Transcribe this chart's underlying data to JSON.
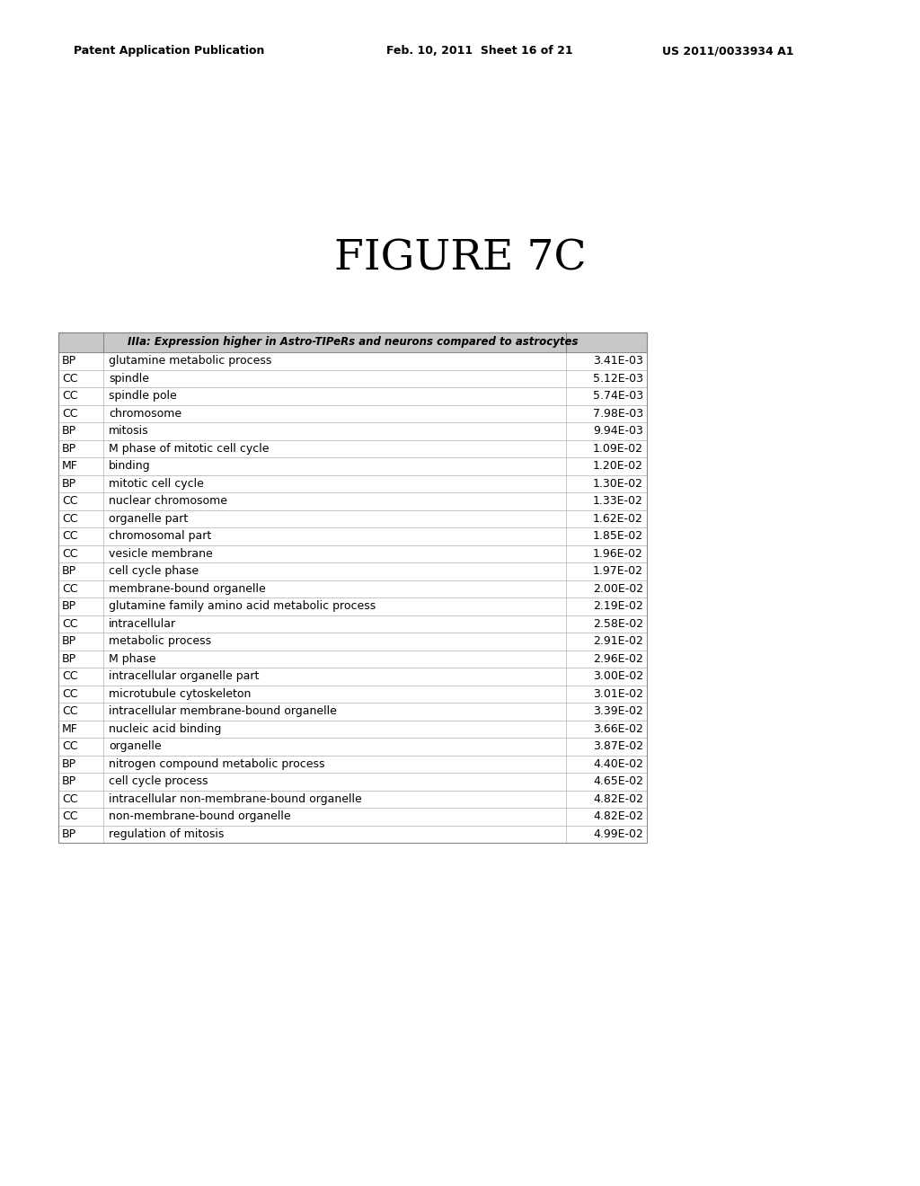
{
  "header_text": "IIIa: Expression higher in Astro-TIPeRs and neurons compared to astrocytes",
  "header_bg": "#c8c8c8",
  "figure_title": "FIGURE 7C",
  "patent_left": "Patent Application Publication",
  "patent_mid": "Feb. 10, 2011  Sheet 16 of 21",
  "patent_right": "US 2011/0033934 A1",
  "rows": [
    [
      "BP",
      "glutamine metabolic process",
      "3.41E-03"
    ],
    [
      "CC",
      "spindle",
      "5.12E-03"
    ],
    [
      "CC",
      "spindle pole",
      "5.74E-03"
    ],
    [
      "CC",
      "chromosome",
      "7.98E-03"
    ],
    [
      "BP",
      "mitosis",
      "9.94E-03"
    ],
    [
      "BP",
      "M phase of mitotic cell cycle",
      "1.09E-02"
    ],
    [
      "MF",
      "binding",
      "1.20E-02"
    ],
    [
      "BP",
      "mitotic cell cycle",
      "1.30E-02"
    ],
    [
      "CC",
      "nuclear chromosome",
      "1.33E-02"
    ],
    [
      "CC",
      "organelle part",
      "1.62E-02"
    ],
    [
      "CC",
      "chromosomal part",
      "1.85E-02"
    ],
    [
      "CC",
      "vesicle membrane",
      "1.96E-02"
    ],
    [
      "BP",
      "cell cycle phase",
      "1.97E-02"
    ],
    [
      "CC",
      "membrane-bound organelle",
      "2.00E-02"
    ],
    [
      "BP",
      "glutamine family amino acid metabolic process",
      "2.19E-02"
    ],
    [
      "CC",
      "intracellular",
      "2.58E-02"
    ],
    [
      "BP",
      "metabolic process",
      "2.91E-02"
    ],
    [
      "BP",
      "M phase",
      "2.96E-02"
    ],
    [
      "CC",
      "intracellular organelle part",
      "3.00E-02"
    ],
    [
      "CC",
      "microtubule cytoskeleton",
      "3.01E-02"
    ],
    [
      "CC",
      "intracellular membrane-bound organelle",
      "3.39E-02"
    ],
    [
      "MF",
      "nucleic acid binding",
      "3.66E-02"
    ],
    [
      "CC",
      "organelle",
      "3.87E-02"
    ],
    [
      "BP",
      "nitrogen compound metabolic process",
      "4.40E-02"
    ],
    [
      "BP",
      "cell cycle process",
      "4.65E-02"
    ],
    [
      "CC",
      "intracellular non-membrane-bound organelle",
      "4.82E-02"
    ],
    [
      "CC",
      "non-membrane-bound organelle",
      "4.82E-02"
    ],
    [
      "BP",
      "regulation of mitosis",
      "4.99E-02"
    ]
  ],
  "table_border_color": "#888888",
  "row_line_color": "#bbbbbb",
  "bg_color": "#ffffff",
  "text_color": "#000000",
  "font_size": 9.0,
  "title_font_size": 34,
  "patent_font_size": 9.0
}
